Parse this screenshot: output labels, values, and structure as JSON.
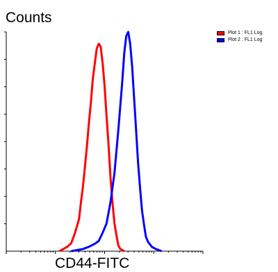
{
  "chart_data": {
    "type": "area",
    "ylabel": "Counts",
    "xlabel": "CD44-FITC",
    "scale": "log",
    "series": [
      {
        "name": "Plot 1 : FL1 Log",
        "color": "#ff0000",
        "points": [
          [
            0.27,
            0
          ],
          [
            0.29,
            0.01
          ],
          [
            0.31,
            0.02
          ],
          [
            0.33,
            0.04
          ],
          [
            0.35,
            0.08
          ],
          [
            0.37,
            0.15
          ],
          [
            0.38,
            0.22
          ],
          [
            0.39,
            0.3
          ],
          [
            0.4,
            0.38
          ],
          [
            0.41,
            0.48
          ],
          [
            0.42,
            0.58
          ],
          [
            0.43,
            0.68
          ],
          [
            0.44,
            0.78
          ],
          [
            0.45,
            0.86
          ],
          [
            0.46,
            0.92
          ],
          [
            0.47,
            0.95
          ],
          [
            0.48,
            0.93
          ],
          [
            0.49,
            0.86
          ],
          [
            0.5,
            0.75
          ],
          [
            0.51,
            0.62
          ],
          [
            0.52,
            0.48
          ],
          [
            0.53,
            0.34
          ],
          [
            0.54,
            0.22
          ],
          [
            0.55,
            0.13
          ],
          [
            0.56,
            0.07
          ],
          [
            0.57,
            0.03
          ],
          [
            0.58,
            0.01
          ],
          [
            0.6,
            0
          ]
        ]
      },
      {
        "name": "Plot 2 : FL1 Log",
        "color": "#0000ff",
        "points": [
          [
            0.33,
            0
          ],
          [
            0.36,
            0.005
          ],
          [
            0.39,
            0.01
          ],
          [
            0.42,
            0.02
          ],
          [
            0.45,
            0.03
          ],
          [
            0.47,
            0.05
          ],
          [
            0.49,
            0.08
          ],
          [
            0.51,
            0.13
          ],
          [
            0.53,
            0.22
          ],
          [
            0.55,
            0.36
          ],
          [
            0.57,
            0.55
          ],
          [
            0.59,
            0.78
          ],
          [
            0.6,
            0.9
          ],
          [
            0.61,
            0.98
          ],
          [
            0.62,
            1.0
          ],
          [
            0.63,
            0.95
          ],
          [
            0.64,
            0.84
          ],
          [
            0.65,
            0.7
          ],
          [
            0.66,
            0.55
          ],
          [
            0.67,
            0.41
          ],
          [
            0.68,
            0.29
          ],
          [
            0.69,
            0.19
          ],
          [
            0.7,
            0.12
          ],
          [
            0.71,
            0.07
          ],
          [
            0.72,
            0.04
          ],
          [
            0.74,
            0.02
          ],
          [
            0.76,
            0.01
          ],
          [
            0.79,
            0
          ]
        ]
      }
    ]
  }
}
